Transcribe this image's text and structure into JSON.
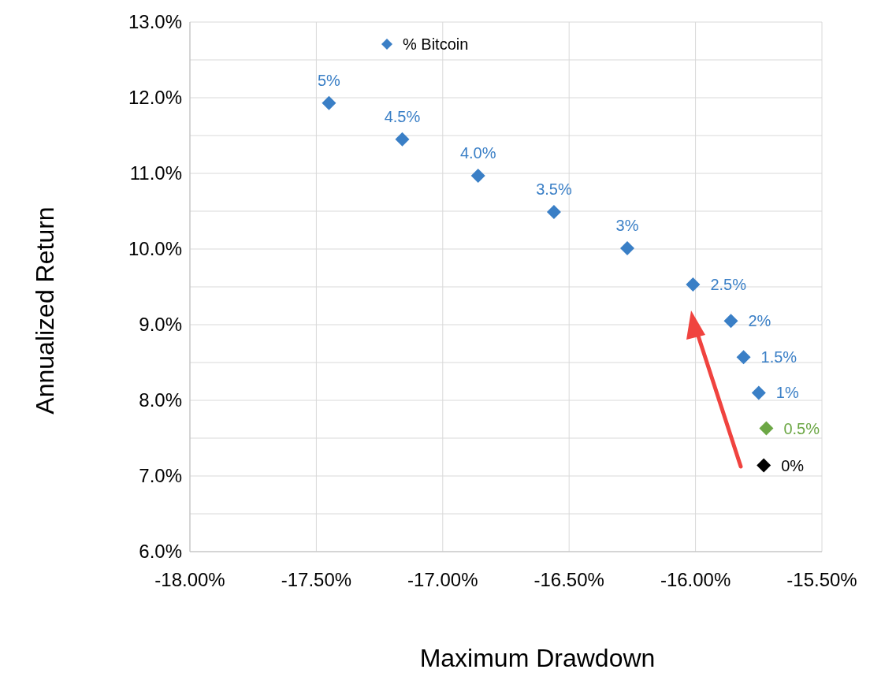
{
  "chart_data": {
    "type": "scatter",
    "xlabel": "Maximum Drawdown",
    "ylabel": "Annualized Return",
    "x": [
      -17.45,
      -17.16,
      -16.86,
      -16.56,
      -16.27,
      -16.01,
      -15.86,
      -15.81,
      -15.75,
      -15.72,
      -15.73
    ],
    "series": [
      {
        "name": "% Bitcoin",
        "color": "#3a7fc6",
        "values": [
          11.93,
          11.45,
          10.97,
          10.49,
          10.01,
          9.53,
          9.05,
          8.57,
          8.1,
          7.63,
          7.14
        ],
        "colors": [
          "#3a7fc6",
          "#3a7fc6",
          "#3a7fc6",
          "#3a7fc6",
          "#3a7fc6",
          "#3a7fc6",
          "#3a7fc6",
          "#3a7fc6",
          "#3a7fc6",
          "#6ca745",
          "#000000"
        ]
      }
    ],
    "annotations": [
      {
        "text": "5%",
        "x": -17.45,
        "y": 11.93
      },
      {
        "text": "4.5%",
        "x": -17.16,
        "y": 11.45
      },
      {
        "text": "4.0%",
        "x": -16.86,
        "y": 10.97
      },
      {
        "text": "3.5%",
        "x": -16.56,
        "y": 10.49
      },
      {
        "text": "3%",
        "x": -16.27,
        "y": 10.01
      },
      {
        "text": "2.5%",
        "x": -16.01,
        "y": 9.53
      },
      {
        "text": "2%",
        "x": -15.86,
        "y": 9.05
      },
      {
        "text": "1.5%",
        "x": -15.81,
        "y": 8.57
      },
      {
        "text": "1%",
        "x": -15.75,
        "y": 8.1
      },
      {
        "text": "0.5%",
        "x": -15.72,
        "y": 7.63
      },
      {
        "text": "0%",
        "x": -15.73,
        "y": 7.14
      }
    ],
    "xlim": [
      -18,
      -15.5
    ],
    "xticks": [
      {
        "value": -18,
        "label": "-18.00%"
      },
      {
        "value": -17.5,
        "label": "-17.50%"
      },
      {
        "value": -17,
        "label": "-17.00%"
      },
      {
        "value": -16.5,
        "label": "-16.50%"
      },
      {
        "value": -16,
        "label": "-16.00%"
      },
      {
        "value": -15.5,
        "label": "-15.50%"
      }
    ],
    "ylim": [
      6,
      13
    ],
    "yticks": [
      {
        "value": 6,
        "label": "6.0%"
      },
      {
        "value": 6.5,
        "label": null
      },
      {
        "value": 7,
        "label": "7.0%"
      },
      {
        "value": 7.5,
        "label": null
      },
      {
        "value": 8,
        "label": "8.0%"
      },
      {
        "value": 8.5,
        "label": null
      },
      {
        "value": 9,
        "label": "9.0%"
      },
      {
        "value": 9.5,
        "label": null
      },
      {
        "value": 10,
        "label": "10.0%"
      },
      {
        "value": 10.5,
        "label": null
      },
      {
        "value": 11,
        "label": "11.0%"
      },
      {
        "value": 11.5,
        "label": null
      },
      {
        "value": 12,
        "label": "12.0%"
      },
      {
        "value": 12.5,
        "label": null
      },
      {
        "value": 13,
        "label": "13.0%"
      }
    ],
    "grid": true,
    "legend": "top left",
    "marker": "diamond"
  }
}
